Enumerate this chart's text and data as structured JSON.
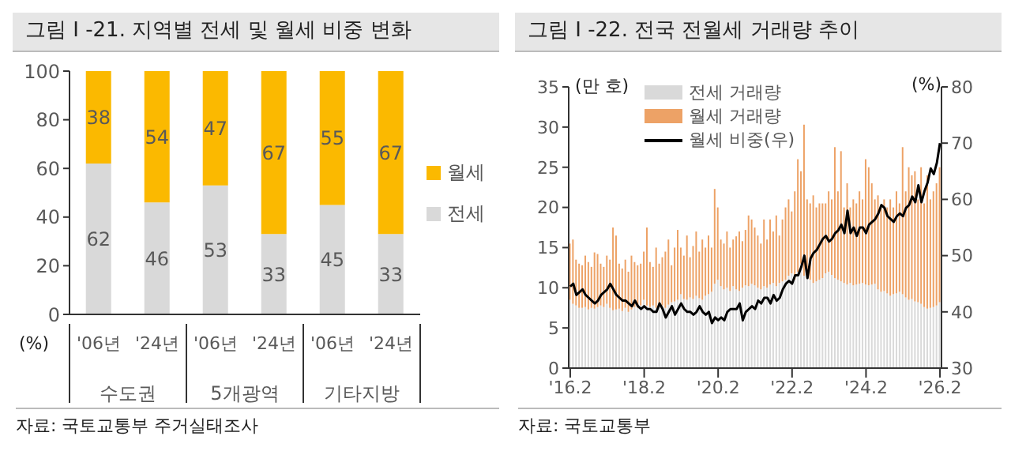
{
  "chart_data": [
    {
      "type": "bar",
      "title": "그림 I -21. 지역별 전세 및 월세 비중 변화",
      "ylabel": "(%)",
      "categories": [
        "'06년",
        "'24년",
        "'06년",
        "'24년",
        "'06년",
        "'24년"
      ],
      "stacked": true,
      "series": [
        {
          "name": "전세",
          "color": "#d9d9d9",
          "values": [
            62,
            46,
            53,
            33,
            45,
            33
          ]
        },
        {
          "name": "월세",
          "color": "#fbb900",
          "values": [
            38,
            54,
            47,
            67,
            55,
            67
          ]
        }
      ],
      "ylim": [
        0,
        100
      ],
      "yticks": [
        0,
        20,
        40,
        60,
        80,
        100
      ],
      "data_labels": true,
      "legend": "right",
      "annotations": [
        "수도권",
        "5개광역",
        "기타지방",
        "자료: 국토교통부 주거실태조사"
      ]
    },
    {
      "type": "bar",
      "title": "그림 I -22. 전국 전월세 거래량 추이",
      "ylabel": "(만 호)",
      "y2label": "(%)",
      "stacked": true,
      "x": [
        "2016-02",
        "2016-03",
        "2016-04",
        "2016-05",
        "2016-06",
        "2016-07",
        "2016-08",
        "2016-09",
        "2016-10",
        "2016-11",
        "2016-12",
        "2017-01",
        "2017-02",
        "2017-03",
        "2017-04",
        "2017-05",
        "2017-06",
        "2017-07",
        "2017-08",
        "2017-09",
        "2017-10",
        "2017-11",
        "2017-12",
        "2018-01",
        "2018-02",
        "2018-03",
        "2018-04",
        "2018-05",
        "2018-06",
        "2018-07",
        "2018-08",
        "2018-09",
        "2018-10",
        "2018-11",
        "2018-12",
        "2019-01",
        "2019-02",
        "2019-03",
        "2019-04",
        "2019-05",
        "2019-06",
        "2019-07",
        "2019-08",
        "2019-09",
        "2019-10",
        "2019-11",
        "2019-12",
        "2020-01",
        "2020-02",
        "2020-03",
        "2020-04",
        "2020-05",
        "2020-06",
        "2020-07",
        "2020-08",
        "2020-09",
        "2020-10",
        "2020-11",
        "2020-12",
        "2021-01",
        "2021-02",
        "2021-03",
        "2021-04",
        "2021-05",
        "2021-06",
        "2021-07",
        "2021-08",
        "2021-09",
        "2021-10",
        "2021-11",
        "2021-12",
        "2022-01",
        "2022-02",
        "2022-03",
        "2022-04",
        "2022-05",
        "2022-06",
        "2022-07",
        "2022-08",
        "2022-09",
        "2022-10",
        "2022-11",
        "2022-12",
        "2023-01",
        "2023-02",
        "2023-03",
        "2023-04",
        "2023-05",
        "2023-06",
        "2023-07",
        "2023-08",
        "2023-09",
        "2023-10",
        "2023-11",
        "2023-12",
        "2024-01",
        "2024-02",
        "2024-03",
        "2024-04",
        "2024-05",
        "2024-06",
        "2024-07",
        "2024-08",
        "2024-09",
        "2024-10",
        "2024-11",
        "2024-12",
        "2025-01",
        "2025-02",
        "2025-03",
        "2025-04",
        "2025-05",
        "2025-06",
        "2025-07",
        "2025-08",
        "2025-09",
        "2025-10",
        "2025-11",
        "2025-12",
        "2026-01",
        "2026-02"
      ],
      "series": [
        {
          "name": "전세 거래량",
          "color": "#d9d9d9",
          "values": [
            8.5,
            8,
            7.8,
            7.5,
            7.5,
            7.6,
            7.3,
            7.5,
            7.4,
            7.6,
            7.8,
            7.6,
            8,
            7.5,
            7.2,
            7.3,
            7.4,
            7.1,
            7.5,
            7,
            7.3,
            7.6,
            7.5,
            7.8,
            8.5,
            7.8,
            7.6,
            7.8,
            7.5,
            7.7,
            7.8,
            7.5,
            7.9,
            8.2,
            8.3,
            8.5,
            9.2,
            8.6,
            8.5,
            8.8,
            8.6,
            9,
            8.7,
            8.5,
            9,
            9.2,
            9.5,
            10.5,
            11,
            10.2,
            9.8,
            10,
            9.6,
            10.2,
            9.8,
            9.6,
            10,
            10.3,
            10.2,
            10.5,
            10.3,
            10,
            9.8,
            10.2,
            10,
            10.4,
            10.6,
            10.2,
            10.6,
            10.8,
            11,
            11.5,
            11.8,
            11,
            12,
            13,
            11.5,
            11.2,
            11,
            10.6,
            10.8,
            11,
            11.2,
            11.8,
            12,
            11.6,
            11.2,
            11,
            10.8,
            10.6,
            10.4,
            10.6,
            10.3,
            10.4,
            10.5,
            10.6,
            10.4,
            10.3,
            10.4,
            10.5,
            9.8,
            9.5,
            9.6,
            9.3,
            9,
            9.2,
            9.3,
            9.5,
            9.2,
            8.8,
            8.5,
            8.6,
            8.3,
            8.2,
            8,
            7.6,
            7.4,
            7.5,
            7.6,
            7.8,
            8.2
          ]
        },
        {
          "name": "월세 거래량",
          "color": "#eda266",
          "values": [
            7,
            8,
            5.7,
            5.5,
            5.3,
            6.4,
            5.9,
            5.1,
            7,
            6.6,
            5.2,
            5,
            6,
            6,
            10.3,
            9.2,
            5.6,
            5.3,
            6,
            5,
            6.7,
            5.6,
            5.3,
            5.2,
            6,
            9.7,
            5.6,
            4.8,
            7.5,
            5.3,
            6,
            7,
            8.1,
            4.6,
            6.7,
            8.7,
            5.8,
            5.4,
            8,
            5,
            6.6,
            8,
            5.8,
            7.5,
            6,
            7.3,
            5.5,
            11.8,
            9,
            5.8,
            5.7,
            7,
            5.4,
            5.8,
            6.6,
            7.4,
            5.8,
            6.9,
            8.8,
            8,
            7.2,
            6.5,
            5.7,
            8.3,
            6,
            8.1,
            6.4,
            8.8,
            5.9,
            7.7,
            9,
            9.5,
            7.7,
            11,
            14,
            11.5,
            18.8,
            9.8,
            9.5,
            10.9,
            9.2,
            9.5,
            9.3,
            8.7,
            10,
            9.4,
            16.3,
            11,
            16.2,
            9.4,
            12.6,
            9.4,
            10.7,
            10.1,
            11.5,
            10.4,
            15.6,
            14.7,
            12.6,
            10.5,
            11.7,
            10.5,
            11.4,
            10.7,
            12,
            10.8,
            12.7,
            11,
            18.3,
            13.2,
            16.5,
            15.4,
            16.2,
            12.8,
            17,
            12.9,
            16.6,
            13.5,
            14.4,
            15.2,
            16.8
          ]
        },
        {
          "name": "월세 비중(우)",
          "type": "line",
          "axis": "y2",
          "color": "#000000",
          "values": [
            44.5,
            45,
            43,
            43.5,
            44,
            43,
            42.5,
            42,
            41.5,
            42,
            43,
            43.5,
            44,
            45,
            44,
            43,
            42.5,
            42,
            42,
            41.5,
            41,
            42,
            41,
            40.5,
            41,
            40.5,
            40.5,
            40,
            40,
            41.5,
            40.5,
            39,
            40,
            41,
            39.5,
            40.5,
            41.5,
            40.5,
            40,
            40,
            39.5,
            40,
            41,
            40,
            39.5,
            40,
            38,
            39,
            38.5,
            39,
            38.5,
            40,
            40.5,
            40.5,
            40.5,
            41.5,
            38.5,
            40,
            40.5,
            41,
            40.5,
            42,
            41.5,
            42.5,
            42.5,
            41.5,
            43,
            42,
            42.5,
            44,
            45,
            45.5,
            45,
            46.5,
            46.5,
            48,
            50,
            46,
            49.5,
            50.5,
            51,
            52,
            53,
            53.5,
            52.5,
            53,
            54,
            54.5,
            55.5,
            54,
            58,
            54,
            55,
            53.5,
            55,
            55,
            54,
            55.5,
            56,
            56.5,
            57.5,
            59,
            58.5,
            57,
            56.5,
            56,
            57,
            57.5,
            57,
            58.5,
            59,
            60.5,
            59.5,
            62.5,
            59.5,
            61.5,
            63,
            65.5,
            64.5,
            66.5,
            70
          ]
        }
      ],
      "ylim": [
        0,
        35
      ],
      "yticks": [
        0,
        5,
        10,
        15,
        20,
        25,
        30,
        35
      ],
      "y2lim": [
        30,
        80
      ],
      "y2ticks": [
        30,
        40,
        50,
        60,
        70,
        80
      ],
      "xticks": [
        {
          "value": "2016-02",
          "label": "'16.2"
        },
        {
          "value": "2018-02",
          "label": "'18.2"
        },
        {
          "value": "2020-02",
          "label": "'20.2"
        },
        {
          "value": "2022-02",
          "label": "'22.2"
        },
        {
          "value": "2024-02",
          "label": "'24.2"
        },
        {
          "value": "2026-02",
          "label": "'26.2"
        }
      ],
      "xlim": [
        "2016-02",
        "2026-02"
      ],
      "legend": "top left",
      "marker": "none",
      "annotations": [
        "자료: 국토교통부"
      ]
    }
  ]
}
